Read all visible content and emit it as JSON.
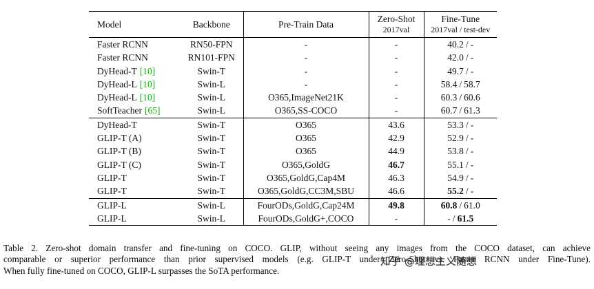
{
  "table": {
    "slash": "/",
    "headers": {
      "model": "Model",
      "backbone": "Backbone",
      "pretrain": "Pre-Train Data",
      "zeroshot_title": "Zero-Shot",
      "zeroshot_sub": "2017val",
      "finetune_title": "Fine-Tune",
      "finetune_sub": "2017val / test-dev"
    },
    "groups": [
      {
        "rows": [
          {
            "model": "Faster RCNN",
            "cite": "",
            "backbone": "RN50-FPN",
            "pretrain": "-",
            "zs": "-",
            "ftl": "40.2",
            "ftr": "-"
          },
          {
            "model": "Faster RCNN",
            "cite": "",
            "backbone": "RN101-FPN",
            "pretrain": "-",
            "zs": "-",
            "ftl": "42.0",
            "ftr": "-"
          },
          {
            "model": "DyHead-T",
            "cite": "[10]",
            "backbone": "Swin-T",
            "pretrain": "-",
            "zs": "-",
            "ftl": "49.7",
            "ftr": "-"
          },
          {
            "model": "DyHead-L",
            "cite": "[10]",
            "backbone": "Swin-L",
            "pretrain": "-",
            "zs": "-",
            "ftl": "58.4",
            "ftr": "58.7"
          },
          {
            "model": "DyHead-L",
            "cite": "[10]",
            "backbone": "Swin-L",
            "pretrain": "O365,ImageNet21K",
            "zs": "-",
            "ftl": "60.3",
            "ftr": "60.6"
          },
          {
            "model": "SoftTeacher",
            "cite": "[65]",
            "backbone": "Swin-L",
            "pretrain": "O365,SS-COCO",
            "zs": "-",
            "ftl": "60.7",
            "ftr": "61.3"
          }
        ]
      },
      {
        "rows": [
          {
            "model": "DyHead-T",
            "cite": "",
            "backbone": "Swin-T",
            "pretrain": "O365",
            "zs": "43.6",
            "ftl": "53.3",
            "ftr": "-"
          },
          {
            "model": "GLIP-T (A)",
            "cite": "",
            "backbone": "Swin-T",
            "pretrain": "O365",
            "zs": "42.9",
            "ftl": "52.9",
            "ftr": "-"
          },
          {
            "model": "GLIP-T (B)",
            "cite": "",
            "backbone": "Swin-T",
            "pretrain": "O365",
            "zs": "44.9",
            "ftl": "53.8",
            "ftr": "-"
          },
          {
            "model": "GLIP-T (C)",
            "cite": "",
            "backbone": "Swin-T",
            "pretrain": "O365,GoldG",
            "zs": "46.7",
            "ftl": "55.1",
            "ftr": "-"
          },
          {
            "model": "GLIP-T",
            "cite": "",
            "backbone": "Swin-T",
            "pretrain": "O365,GoldG,Cap4M",
            "zs": "46.3",
            "ftl": "54.9",
            "ftr": "-"
          },
          {
            "model": "GLIP-T",
            "cite": "",
            "backbone": "Swin-T",
            "pretrain": "O365,GoldG,CC3M,SBU",
            "zs": "46.6",
            "ftl": "55.2",
            "ftr": "-"
          }
        ]
      },
      {
        "rows": [
          {
            "model": "GLIP-L",
            "cite": "",
            "backbone": "Swin-L",
            "pretrain": "FourODs,GoldG,Cap24M",
            "zs": "49.8",
            "ftl": "60.8",
            "ftr": "61.0"
          },
          {
            "model": "GLIP-L",
            "cite": "",
            "backbone": "Swin-L",
            "pretrain": "FourODs,GoldG+,COCO",
            "zs": "-",
            "ftl": "-",
            "ftr": "61.5"
          }
        ]
      }
    ]
  },
  "caption": {
    "line1": "Table 2.  Zero-shot domain transfer and fine-tuning on COCO. GLIP, without seeing any images from the COCO dataset, can achieve",
    "line2": "comparable or superior performance than prior supervised models (e.g.  GLIP-T under Zero-Shot vs. Faster RCNN under Fine-Tune).",
    "line3": "When fully fine-tuned on COCO, GLIP-L surpasses the SoTA performance."
  },
  "watermark": "知乎 @理想主义随想",
  "colors": {
    "citation_green": "#00bb00",
    "text": "#111111",
    "watermark_gray": "#2b2b2b"
  }
}
